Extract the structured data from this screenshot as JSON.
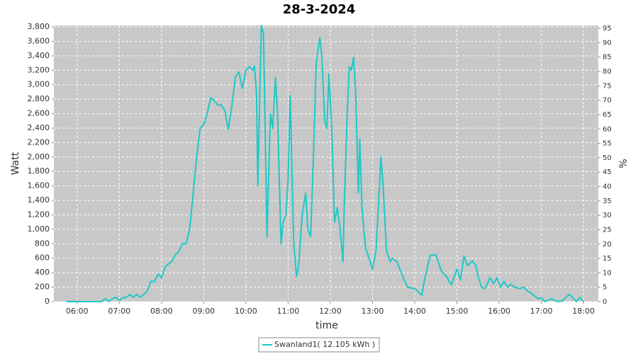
{
  "chart_data": {
    "type": "line",
    "title": "28-3-2024",
    "x_label": "time",
    "y_label": "Watt",
    "y2_label": "%",
    "xlim": [
      "05:27",
      "18:21"
    ],
    "xticks": [
      "06:00",
      "07:00",
      "08:00",
      "09:00",
      "10:00",
      "11:00",
      "12:00",
      "13:00",
      "14:00",
      "15:00",
      "16:00",
      "17:00",
      "18:00"
    ],
    "ylim": [
      0,
      3820
    ],
    "yticks": [
      0,
      200,
      400,
      600,
      800,
      {
        "value": 1000,
        "label": "1,000"
      },
      {
        "value": 1200,
        "label": "1,200"
      },
      {
        "value": 1400,
        "label": "1,400"
      },
      {
        "value": 1600,
        "label": "1,600"
      },
      {
        "value": 1800,
        "label": "1,800"
      },
      {
        "value": 2000,
        "label": "2,000"
      },
      {
        "value": 2200,
        "label": "2,200"
      },
      {
        "value": 2400,
        "label": "2,400"
      },
      {
        "value": 2600,
        "label": "2,600"
      },
      {
        "value": 2800,
        "label": "2,800"
      },
      {
        "value": 3000,
        "label": "3,000"
      },
      {
        "value": 3200,
        "label": "3,200"
      },
      {
        "value": 3400,
        "label": "3,400"
      },
      {
        "value": 3600,
        "label": "3,600"
      },
      {
        "value": 3800,
        "label": "3,800"
      }
    ],
    "y2lim": [
      0,
      96
    ],
    "y2ticks": [
      0,
      5,
      10,
      15,
      20,
      25,
      30,
      35,
      40,
      45,
      50,
      55,
      60,
      65,
      70,
      75,
      80,
      85,
      90,
      95
    ],
    "grid": true,
    "legend": "bottom",
    "series": [
      {
        "name": "Swanland1( 12.105 kWh )",
        "color": "#1ec8c8",
        "x": [
          "05:45",
          "06:00",
          "06:30",
          "06:35",
          "06:40",
          "06:45",
          "06:50",
          "06:55",
          "07:00",
          "07:05",
          "07:10",
          "07:15",
          "07:20",
          "07:25",
          "07:30",
          "07:35",
          "07:40",
          "07:45",
          "07:50",
          "07:55",
          "08:00",
          "08:05",
          "08:10",
          "08:15",
          "08:20",
          "08:25",
          "08:30",
          "08:35",
          "08:40",
          "08:45",
          "08:50",
          "08:55",
          "09:00",
          "09:05",
          "09:10",
          "09:15",
          "09:20",
          "09:25",
          "09:30",
          "09:35",
          "09:40",
          "09:45",
          "09:50",
          "09:55",
          "10:00",
          "10:05",
          "10:10",
          "10:12",
          "10:15",
          "10:17",
          "10:20",
          "10:22",
          "10:25",
          "10:30",
          "10:33",
          "10:35",
          "10:38",
          "10:42",
          "10:45",
          "10:50",
          "10:53",
          "10:57",
          "11:00",
          "11:03",
          "11:05",
          "11:08",
          "11:12",
          "11:15",
          "11:20",
          "11:25",
          "11:28",
          "11:32",
          "11:36",
          "11:40",
          "11:45",
          "11:48",
          "11:52",
          "11:55",
          "11:58",
          "12:02",
          "12:06",
          "12:10",
          "12:14",
          "12:18",
          "12:20",
          "12:24",
          "12:27",
          "12:30",
          "12:33",
          "12:36",
          "12:40",
          "12:42",
          "12:45",
          "12:50",
          "12:55",
          "13:00",
          "13:05",
          "13:12",
          "13:15",
          "13:20",
          "13:25",
          "13:28",
          "13:35",
          "13:45",
          "13:50",
          "14:00",
          "14:10",
          "14:15",
          "14:22",
          "14:30",
          "14:38",
          "14:45",
          "14:52",
          "15:00",
          "15:05",
          "15:10",
          "15:15",
          "15:22",
          "15:27",
          "15:30",
          "15:35",
          "15:40",
          "15:47",
          "15:52",
          "15:57",
          "16:02",
          "16:07",
          "16:12",
          "16:17",
          "16:22",
          "16:30",
          "16:35",
          "16:40",
          "16:45",
          "16:50",
          "16:55",
          "17:00",
          "17:05",
          "17:10",
          "17:15",
          "17:20",
          "17:25",
          "17:30",
          "17:35",
          "17:40",
          "17:45",
          "17:50",
          "17:55",
          "18:00"
        ],
        "values": [
          0,
          0,
          0,
          0,
          40,
          0,
          40,
          60,
          20,
          50,
          60,
          100,
          60,
          100,
          60,
          100,
          150,
          280,
          280,
          380,
          330,
          480,
          520,
          560,
          650,
          700,
          800,
          800,
          1000,
          1500,
          2000,
          2400,
          2450,
          2600,
          2820,
          2780,
          2720,
          2720,
          2650,
          2380,
          2700,
          3100,
          3180,
          2950,
          3200,
          3250,
          3200,
          3260,
          2900,
          1600,
          3000,
          3820,
          3700,
          900,
          2000,
          2600,
          2400,
          3100,
          2600,
          800,
          1100,
          1200,
          1700,
          2850,
          2000,
          800,
          350,
          500,
          1200,
          1500,
          1000,
          900,
          2000,
          3300,
          3650,
          3400,
          2500,
          2400,
          3150,
          2400,
          1100,
          1300,
          1000,
          550,
          1400,
          2600,
          3250,
          3200,
          3380,
          2900,
          1500,
          2250,
          1300,
          750,
          600,
          450,
          700,
          2000,
          1600,
          700,
          550,
          600,
          550,
          300,
          200,
          180,
          90,
          350,
          640,
          650,
          420,
          350,
          230,
          450,
          300,
          630,
          500,
          560,
          500,
          350,
          200,
          180,
          330,
          250,
          330,
          200,
          280,
          200,
          240,
          200,
          180,
          200,
          150,
          120,
          80,
          40,
          50,
          0,
          20,
          40,
          10,
          0,
          10,
          60,
          100,
          50,
          0,
          60,
          0
        ]
      }
    ]
  }
}
